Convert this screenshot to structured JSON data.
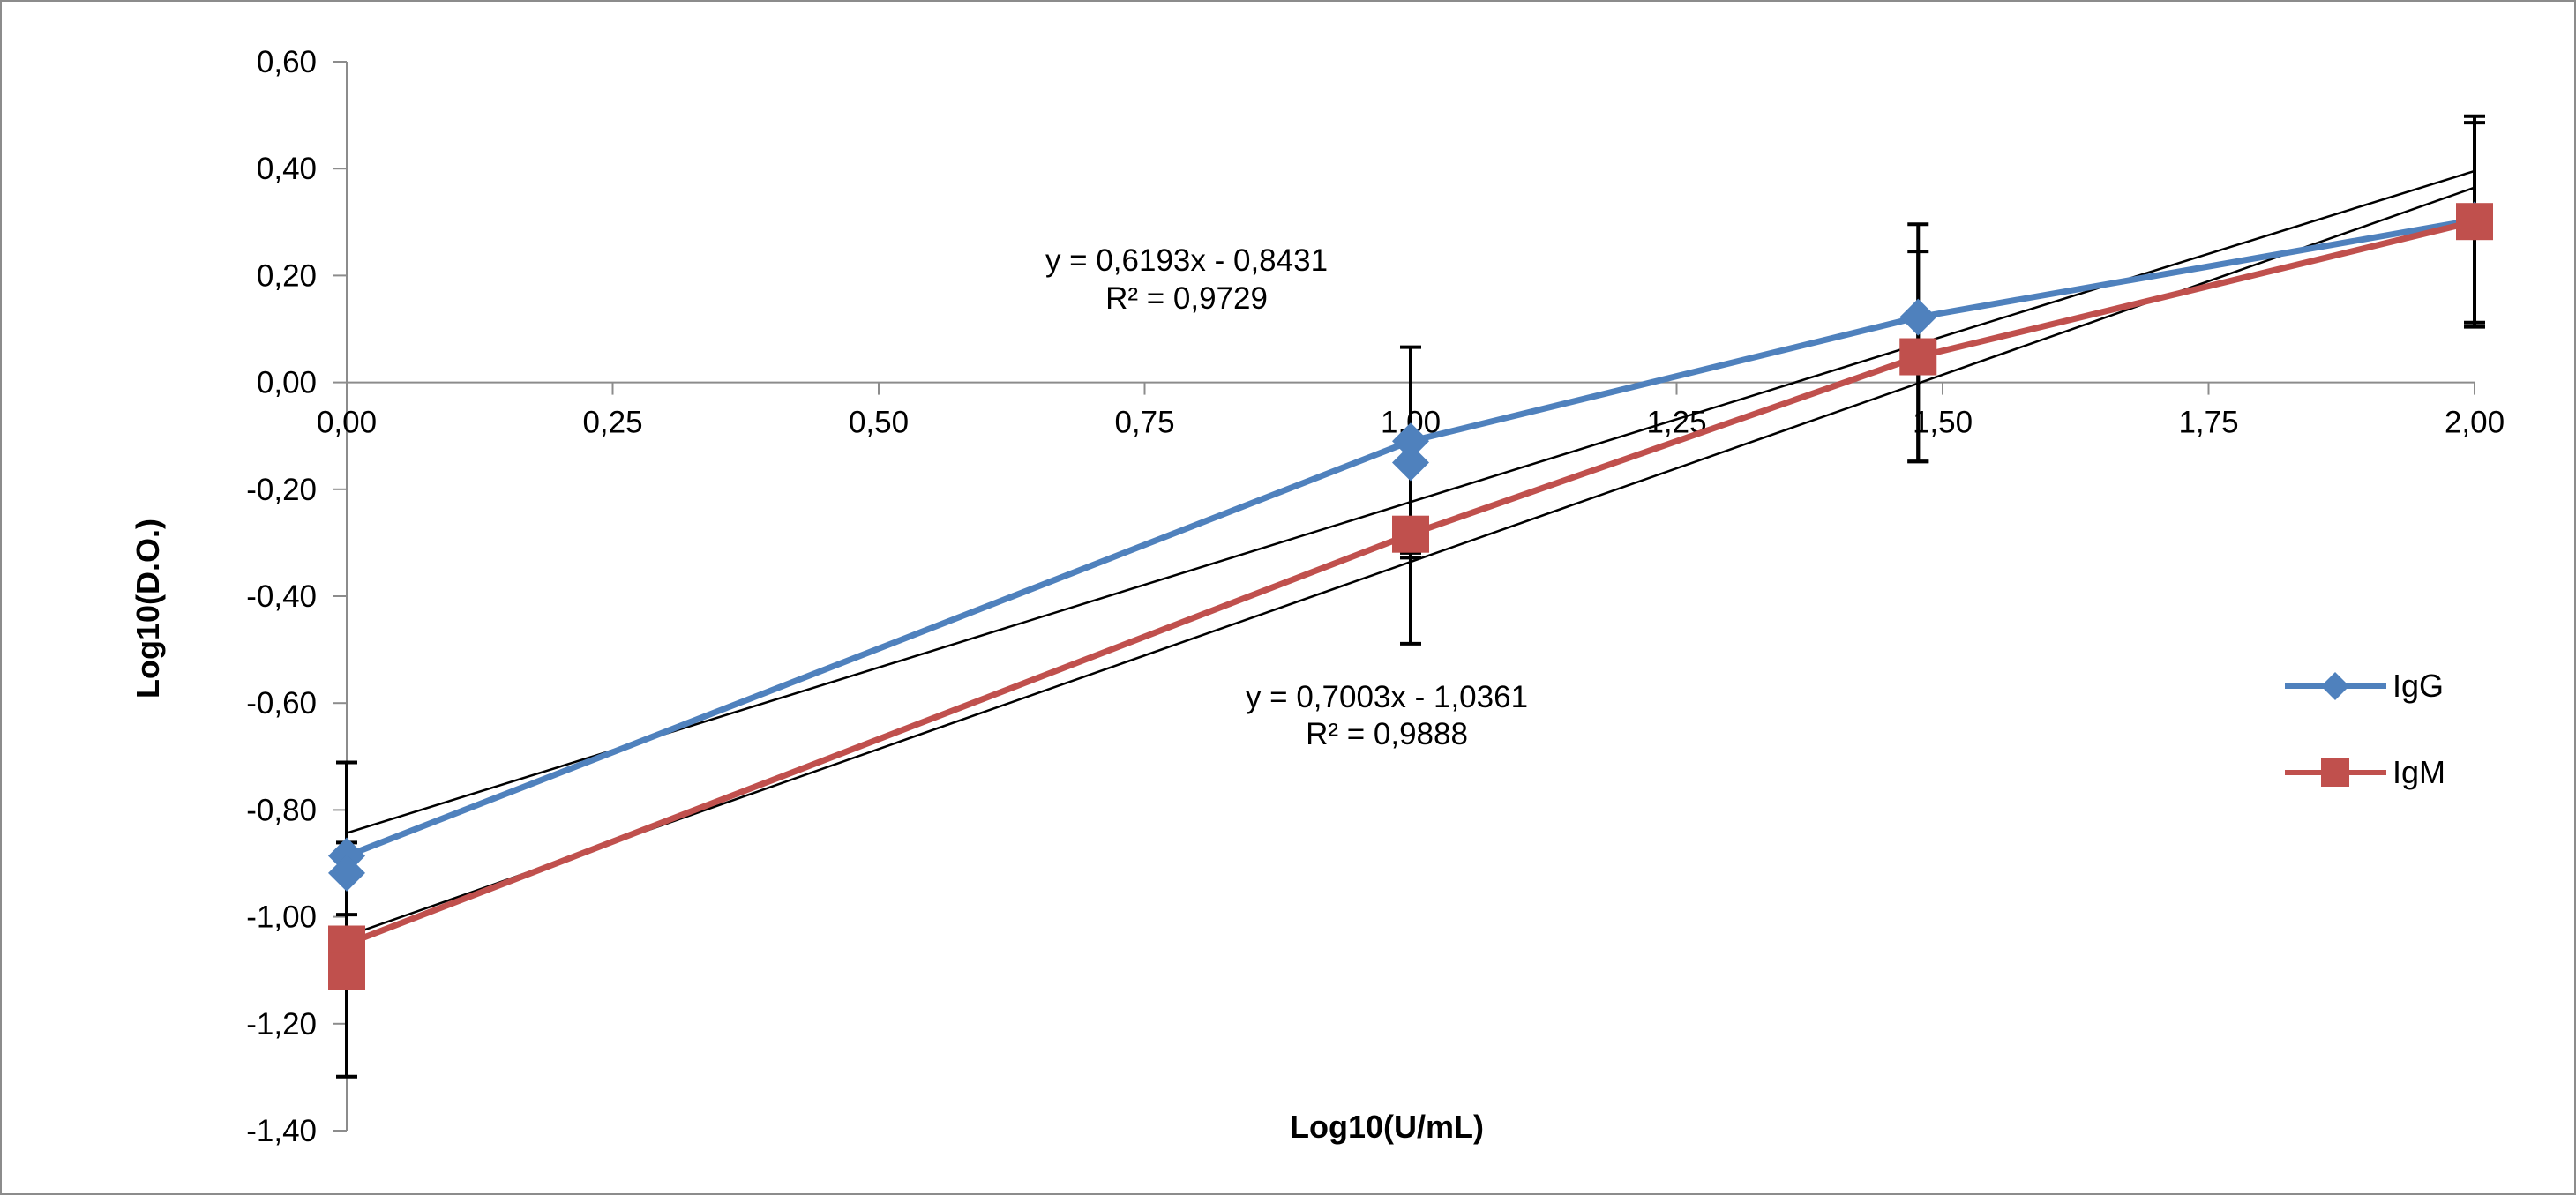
{
  "chart_data": {
    "type": "line",
    "title": "",
    "xlabel": "Log10(U/mL)",
    "ylabel": "Log10(D.O.)",
    "xlim": [
      0,
      2
    ],
    "ylim": [
      -1.4,
      0.6
    ],
    "x_ticks": [
      "0,00",
      "0,25",
      "0,50",
      "0,75",
      "1,00",
      "1,25",
      "1,50",
      "1,75",
      "2,00"
    ],
    "y_ticks": [
      "0,60",
      "0,40",
      "0,20",
      "0,00",
      "-0,20",
      "-0,40",
      "-0,60",
      "-0,80",
      "-1,00",
      "-1,20",
      "-1,40"
    ],
    "grid": false,
    "legend_position": "right",
    "series": [
      {
        "name": "IgG",
        "color": "#4f81bd",
        "marker": "diamond",
        "x": [
          0,
          1.0,
          1.477,
          2.0
        ],
        "y": [
          -0.886,
          -0.11,
          0.122,
          0.304
        ],
        "x_markers": [
          0,
          0,
          1.0,
          1.0,
          1.477,
          2.0
        ],
        "y_markers": [
          -0.886,
          -0.918,
          -0.11,
          -0.15,
          0.122,
          0.304
        ],
        "error_low": [
          -0.996,
          -0.328,
          -0.148,
          0.112
        ],
        "error_high": [
          -0.711,
          0.066,
          0.296,
          0.498
        ]
      },
      {
        "name": "IgM",
        "color": "#c0504d",
        "marker": "square",
        "x": [
          0,
          1.0,
          1.477,
          2.0
        ],
        "y": [
          -1.051,
          -0.284,
          0.048,
          0.301
        ],
        "x_markers": [
          0,
          0,
          1.0,
          1.477,
          2.0
        ],
        "y_markers": [
          -1.051,
          -1.102,
          -0.284,
          0.048,
          0.301
        ],
        "error_low": [
          -1.299,
          -0.489,
          -0.148,
          0.104
        ],
        "error_high": [
          -0.861,
          -0.319,
          0.245,
          0.486
        ]
      }
    ],
    "trendlines": [
      {
        "series": "IgG",
        "slope": 0.6193,
        "intercept": -0.8431,
        "equation": "y = 0,6193x - 0,8431",
        "r2": "R² = 0,9729"
      },
      {
        "series": "IgM",
        "slope": 0.7003,
        "intercept": -1.0361,
        "equation": "y = 0,7003x - 1,0361",
        "r2": "R² = 0,9888"
      }
    ]
  }
}
